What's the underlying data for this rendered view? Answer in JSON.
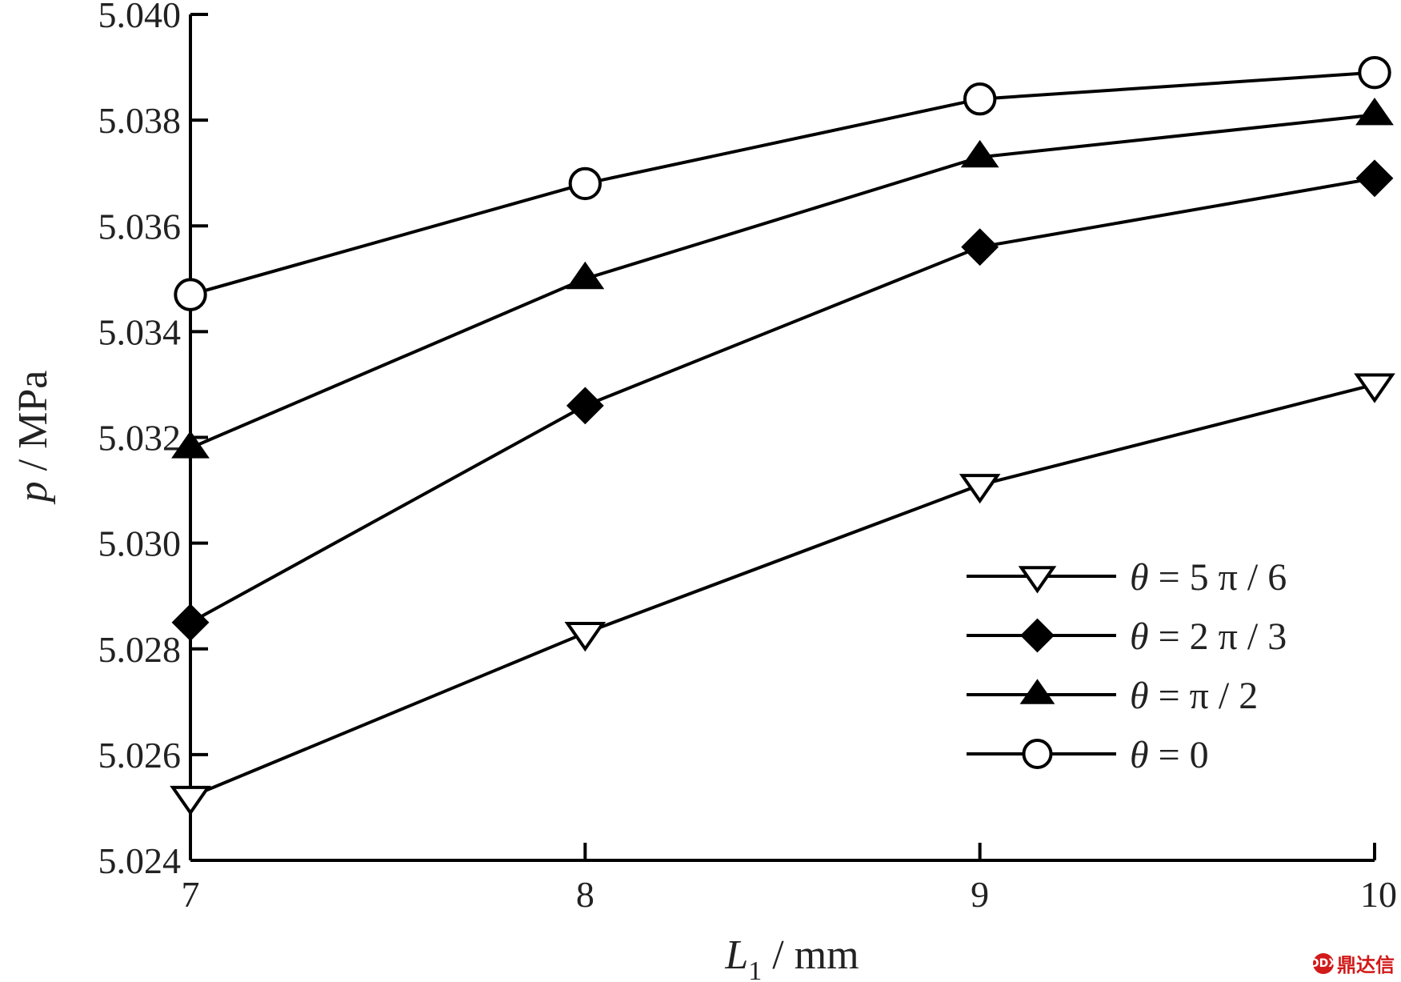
{
  "chart_data": {
    "type": "line",
    "x": [
      7,
      8,
      9,
      10
    ],
    "xlim": [
      7,
      10
    ],
    "ylim": [
      5.024,
      5.04
    ],
    "xticks": [
      "7",
      "8",
      "9",
      "10"
    ],
    "yticks": [
      "5.024",
      "5.026",
      "5.028",
      "5.030",
      "5.032",
      "5.034",
      "5.036",
      "5.038",
      "5.040"
    ],
    "xlabel": {
      "var": "L",
      "sub": "1",
      "unit": "mm"
    },
    "ylabel": {
      "var": "p",
      "unit": "MPa"
    },
    "legend_position": "lower-right",
    "grid": false,
    "series": [
      {
        "name": "θ = 5 π / 6",
        "greek": "θ",
        "expr": "= 5 π / 6",
        "marker": "triangle-down-open",
        "values": [
          5.0252,
          5.0283,
          5.0311,
          5.033
        ]
      },
      {
        "name": "θ = 2 π / 3",
        "greek": "θ",
        "expr": "= 2 π / 3",
        "marker": "diamond-filled",
        "values": [
          5.0285,
          5.0326,
          5.0356,
          5.0369
        ]
      },
      {
        "name": "θ = π / 2",
        "greek": "θ",
        "expr": "=  π / 2",
        "marker": "triangle-up-filled",
        "values": [
          5.0318,
          5.035,
          5.0373,
          5.0381
        ]
      },
      {
        "name": "θ = 0",
        "greek": "θ",
        "expr": "= 0",
        "marker": "circle-open",
        "values": [
          5.0347,
          5.0368,
          5.0384,
          5.0389
        ]
      }
    ]
  },
  "watermark": {
    "logo": "DDX",
    "text": "鼎达信"
  }
}
